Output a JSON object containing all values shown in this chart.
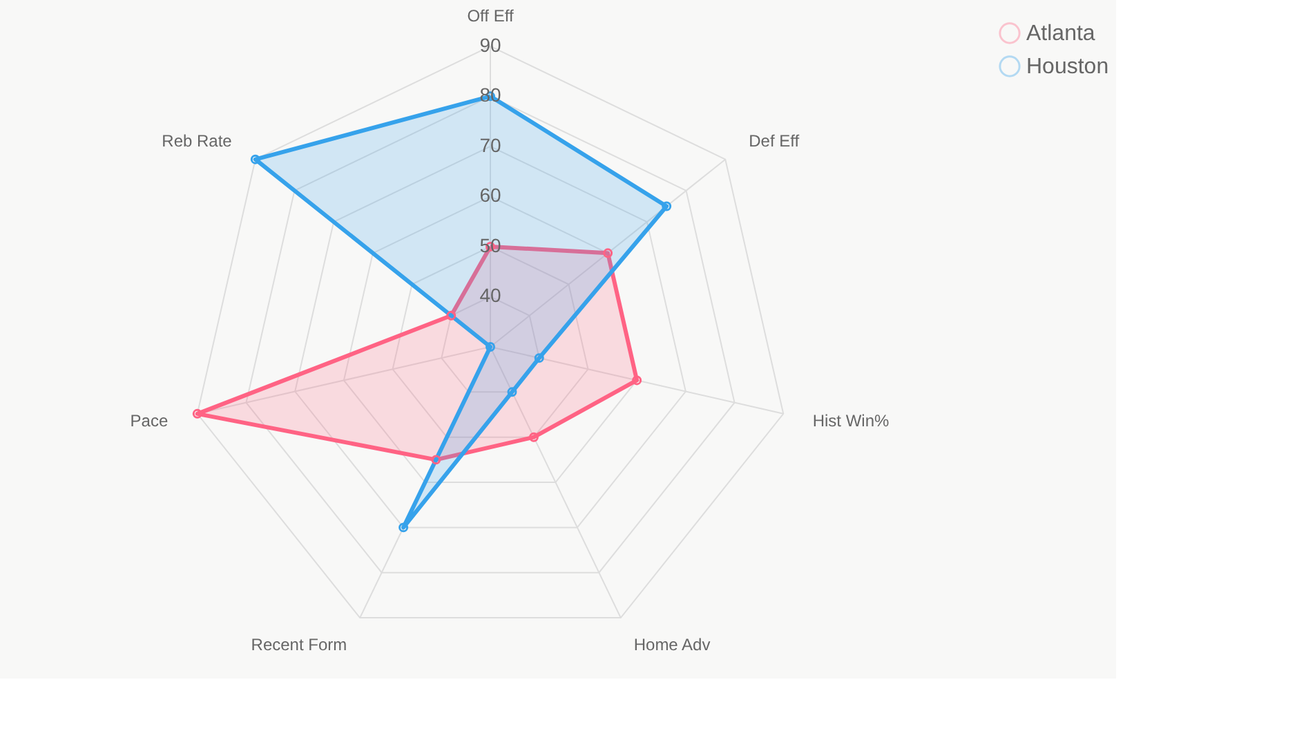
{
  "chart_data": {
    "type": "radar",
    "categories": [
      "Off Eff",
      "Def Eff",
      "Hist Win%",
      "Home Adv",
      "Recent Form",
      "Pace",
      "Reb Rate"
    ],
    "series": [
      {
        "name": "Atlanta",
        "color": "#ff6384",
        "values": [
          50,
          60,
          60,
          50,
          55,
          90,
          40
        ]
      },
      {
        "name": "Houston",
        "color": "#36a2eb",
        "values": [
          80,
          75,
          40,
          40,
          70,
          30,
          90
        ]
      }
    ],
    "ylim": [
      30,
      90
    ],
    "yticks": [
      40,
      50,
      60,
      70,
      80,
      90
    ],
    "grid": true,
    "legend": "right",
    "marker": "circle"
  }
}
